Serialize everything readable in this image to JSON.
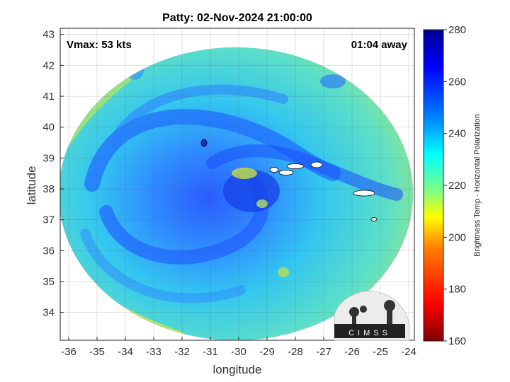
{
  "title": "Patty: 02-Nov-2024 21:00:00",
  "vmax_text": "Vmax: 53 kts",
  "time_away_text": "01:04 away",
  "xlabel": "longitude",
  "ylabel": "latitude",
  "x_ticks": [
    "-36",
    "-35",
    "-34",
    "-33",
    "-32",
    "-31",
    "-30",
    "-29",
    "-28",
    "-27",
    "-26",
    "-25",
    "-24"
  ],
  "y_ticks": [
    "43",
    "42",
    "41",
    "40",
    "39",
    "38",
    "37",
    "36",
    "35",
    "34"
  ],
  "colorbar": {
    "label": "Brightness Temp - Horizontal Polarization",
    "ticks": [
      "280",
      "260",
      "240",
      "220",
      "200",
      "180",
      "160"
    ],
    "range": [
      160,
      280
    ],
    "colors": [
      "#7f0000",
      "#ff0000",
      "#ff8000",
      "#ffff00",
      "#80ff80",
      "#00ffff",
      "#0080ff",
      "#0000ff",
      "#00008f"
    ]
  },
  "logo_text": "CIMSS",
  "chart_data": {
    "type": "heatmap",
    "title": "Patty: 02-Nov-2024 21:00:00",
    "xlabel": "longitude",
    "ylabel": "latitude",
    "xlim": [
      -36.3,
      -23.8
    ],
    "ylim": [
      33.1,
      43.2
    ],
    "storm_center": {
      "lon": -29.6,
      "lat": 37.8
    },
    "swath_extent": {
      "lon_min": -36.3,
      "lon_max": -23.8,
      "lat_min": 33.1,
      "lat_max": 43.2
    },
    "colorbar_range": [
      160,
      280
    ],
    "annotations": [
      "Vmax: 53 kts",
      "01:04 away"
    ],
    "grid": true
  }
}
